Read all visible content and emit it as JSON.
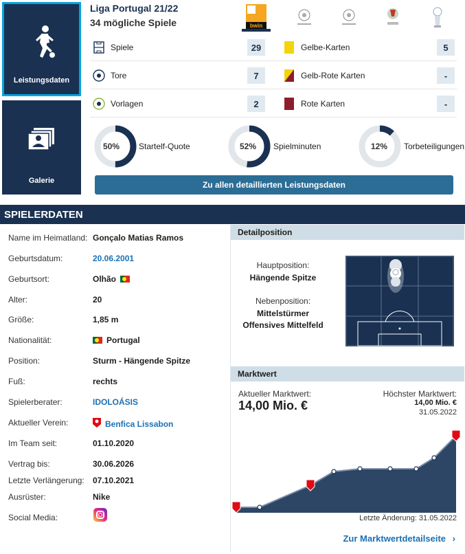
{
  "tiles": {
    "performance": "Leistungsdaten",
    "gallery": "Galerie"
  },
  "header": {
    "league": "Liga Portugal 21/22",
    "games": "34 mögliche Spiele",
    "competitions": [
      "Liga Portugal bwin",
      "Champions League",
      "Champions League",
      "Taça de Portugal",
      "Allianz Cup"
    ]
  },
  "stats_left": [
    {
      "label": "Spiele",
      "value": "29",
      "icon": "pitch-icon"
    },
    {
      "label": "Tore",
      "value": "7",
      "icon": "ball-icon"
    },
    {
      "label": "Vorlagen",
      "value": "2",
      "icon": "assist-icon"
    }
  ],
  "stats_right": [
    {
      "label": "Gelbe-Karten",
      "value": "5",
      "color": "#f1d50a"
    },
    {
      "label": "Gelb-Rote Karten",
      "value": "-",
      "color": "#f1d50a"
    },
    {
      "label": "Rote Karten",
      "value": "-",
      "color": "#8b1e2a"
    }
  ],
  "quotes": [
    {
      "percent": "50%",
      "label": "Startelf-Quote",
      "fraction": 0.5
    },
    {
      "percent": "52%",
      "label": "Spielminuten",
      "fraction": 0.52
    },
    {
      "percent": "12%",
      "label": "Torbeteiligungen",
      "fraction": 0.12
    }
  ],
  "cta": "Zu allen detaillierten Leistungsdaten",
  "section_title": "SPIELERDATEN",
  "player": [
    {
      "label": "Name im Heimatland:",
      "value": "Gonçalo Matias Ramos"
    },
    {
      "label": "Geburtsdatum:",
      "value": "20.06.2001",
      "link": true
    },
    {
      "label": "Geburtsort:",
      "value": "Olhão",
      "flag": true
    },
    {
      "label": "Alter:",
      "value": "20"
    },
    {
      "label": "Größe:",
      "value": "1,85 m"
    },
    {
      "label": "Nationalität:",
      "value": "Portugal",
      "flag_before": true
    },
    {
      "label": "Position:",
      "value": "Sturm - Hängende Spitze"
    },
    {
      "label": "Fuß:",
      "value": "rechts"
    },
    {
      "label": "Spielerberater:",
      "value": "IDOLOÁSIS",
      "link": true
    },
    {
      "label": "Aktueller Verein:",
      "value": "Benfica Lissabon",
      "link": true,
      "crest": true
    },
    {
      "label": "Im Team seit:",
      "value": "01.10.2020"
    },
    {
      "label": "Vertrag bis:",
      "value": "30.06.2026"
    },
    {
      "label": "Letzte Verlängerung:",
      "value": "07.10.2021"
    },
    {
      "label": "Ausrüster:",
      "value": "Nike"
    },
    {
      "label": "Social Media:",
      "value": ""
    }
  ],
  "detail": {
    "title": "Detailposition",
    "main_label": "Hauptposition:",
    "main_value": "Hängende Spitze",
    "side_label": "Nebenposition:",
    "side_values": [
      "Mittelstürmer",
      "Offensives Mittelfeld"
    ]
  },
  "market": {
    "title": "Marktwert",
    "current_label": "Aktueller Marktwert:",
    "current_value": "14,00 Mio. €",
    "highest_label": "Höchster Marktwert:",
    "highest_value": "14,00 Mio. €",
    "highest_date": "31.05.2022",
    "last_change": "Letzte Änderung: 31.05.2022",
    "link": "Zur Marktwertdetailseite"
  },
  "colors": {
    "navy": "#1a3151",
    "accent": "#00a3e0",
    "link": "#1b70b4"
  }
}
